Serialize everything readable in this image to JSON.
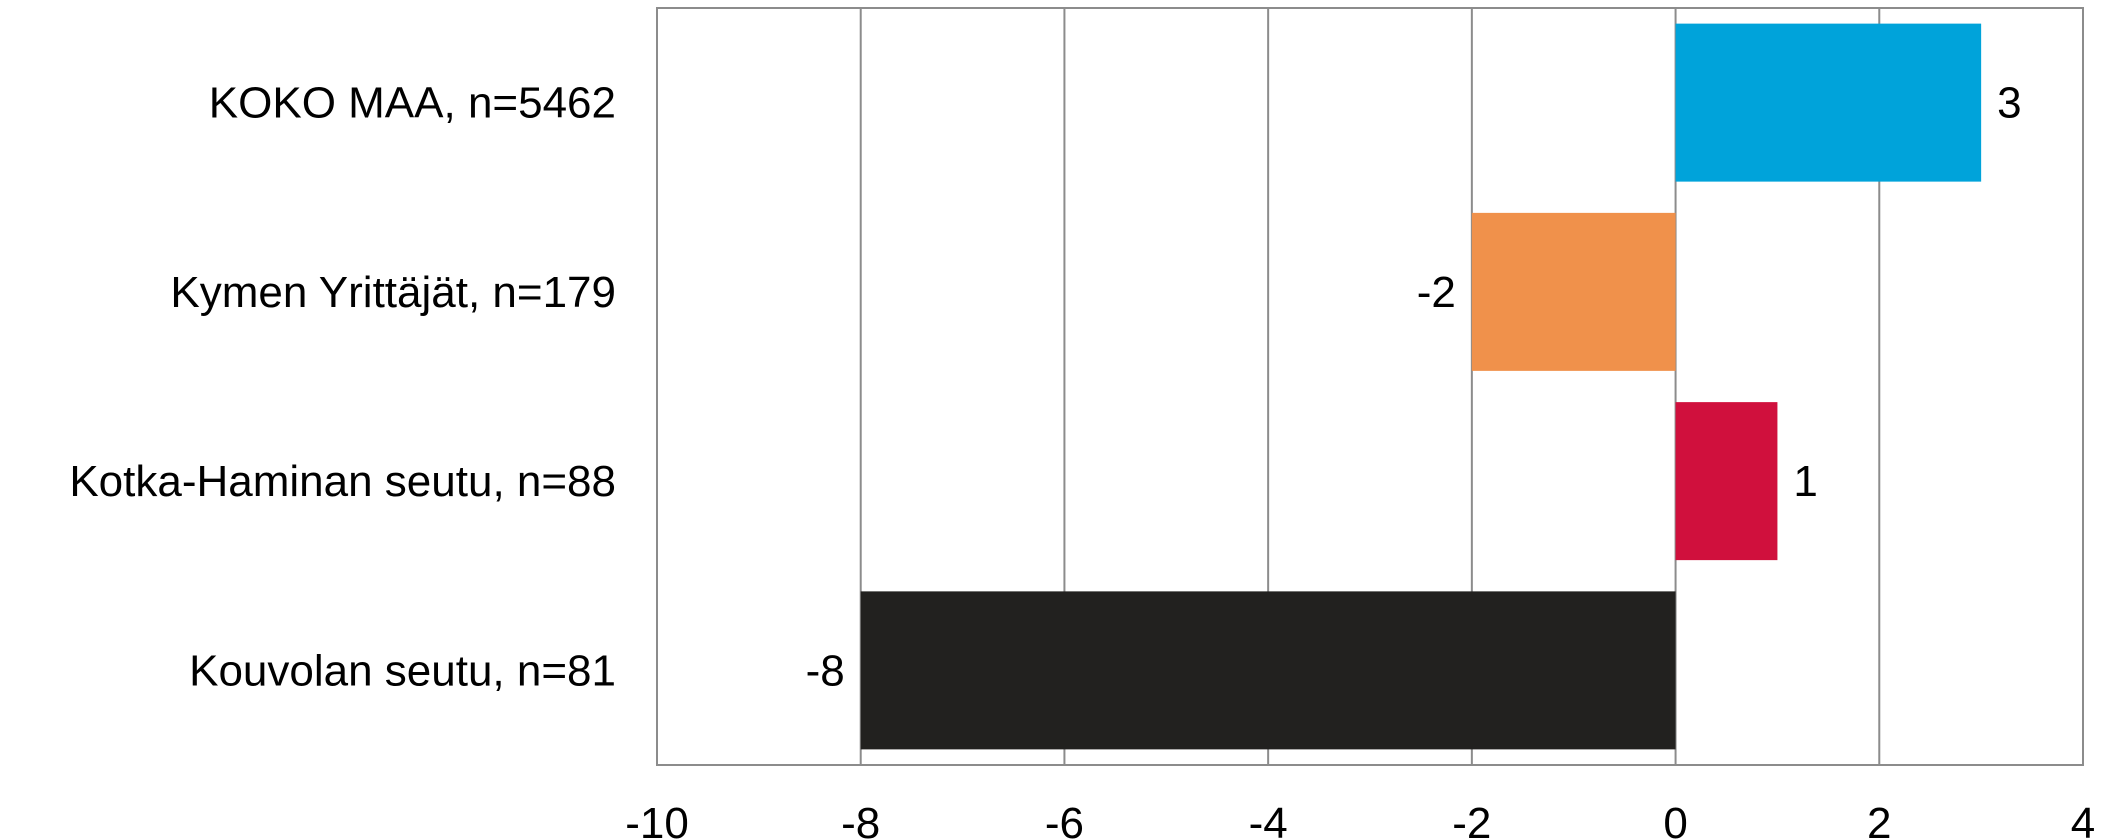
{
  "chart_data": {
    "type": "bar",
    "orientation": "horizontal",
    "categories": [
      "KOKO MAA, n=5462",
      "Kymen Yrittäjät, n=179",
      "Kotka-Haminan seutu, n=88",
      "Kouvolan seutu, n=81"
    ],
    "values": [
      3,
      -2,
      1,
      -8
    ],
    "value_labels": [
      "3",
      "-2",
      "1",
      "-8"
    ],
    "bar_colors": [
      "#00a3da",
      "#f0914b",
      "#d0103d",
      "#22211f"
    ],
    "xlim": [
      -10,
      4
    ],
    "xticks": [
      -10,
      -8,
      -6,
      -4,
      -2,
      0,
      2,
      4
    ],
    "xtick_labels": [
      "-10",
      "-8",
      "-6",
      "-4",
      "-2",
      "0",
      "2",
      "4"
    ],
    "grid": true,
    "legend": "none"
  }
}
